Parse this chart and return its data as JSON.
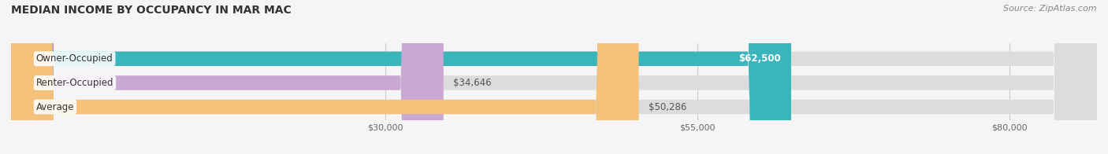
{
  "title": "MEDIAN INCOME BY OCCUPANCY IN MAR MAC",
  "source": "Source: ZipAtlas.com",
  "categories": [
    "Owner-Occupied",
    "Renter-Occupied",
    "Average"
  ],
  "values": [
    62500,
    34646,
    50286
  ],
  "bar_colors": [
    "#3ab5bb",
    "#c9a8d4",
    "#f5c07a"
  ],
  "bar_bg_color": "#dcdcdc",
  "value_labels": [
    "$62,500",
    "$34,646",
    "$50,286"
  ],
  "x_ticks": [
    30000,
    55000,
    80000
  ],
  "x_tick_labels": [
    "$30,000",
    "$55,000",
    "$80,000"
  ],
  "xmin": 0,
  "xmax": 87000,
  "title_fontsize": 10,
  "label_fontsize": 8.5,
  "tick_fontsize": 8,
  "source_fontsize": 8,
  "bg_color": "#f5f5f5"
}
